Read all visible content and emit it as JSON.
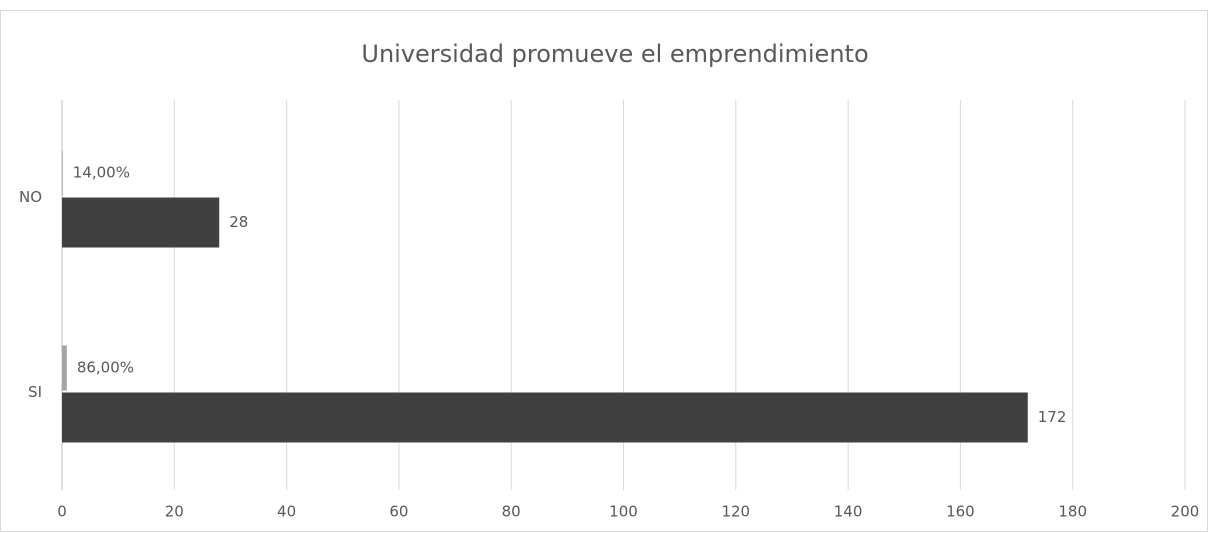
{
  "chart_data": {
    "type": "bar",
    "orientation": "horizontal",
    "title": "Universidad promueve el emprendimiento",
    "categories": [
      "SI",
      "NO"
    ],
    "series": [
      {
        "color": "#a5a5a5",
        "values": [
          0.86,
          0.14
        ],
        "value_labels": [
          "86,00%",
          "14,00%"
        ]
      },
      {
        "color": "#404040",
        "values": [
          172,
          28
        ]
      }
    ],
    "xlim": [
      0,
      200
    ],
    "xticks": [
      0,
      20,
      40,
      60,
      80,
      100,
      120,
      140,
      160,
      180,
      200
    ],
    "grid": true
  }
}
